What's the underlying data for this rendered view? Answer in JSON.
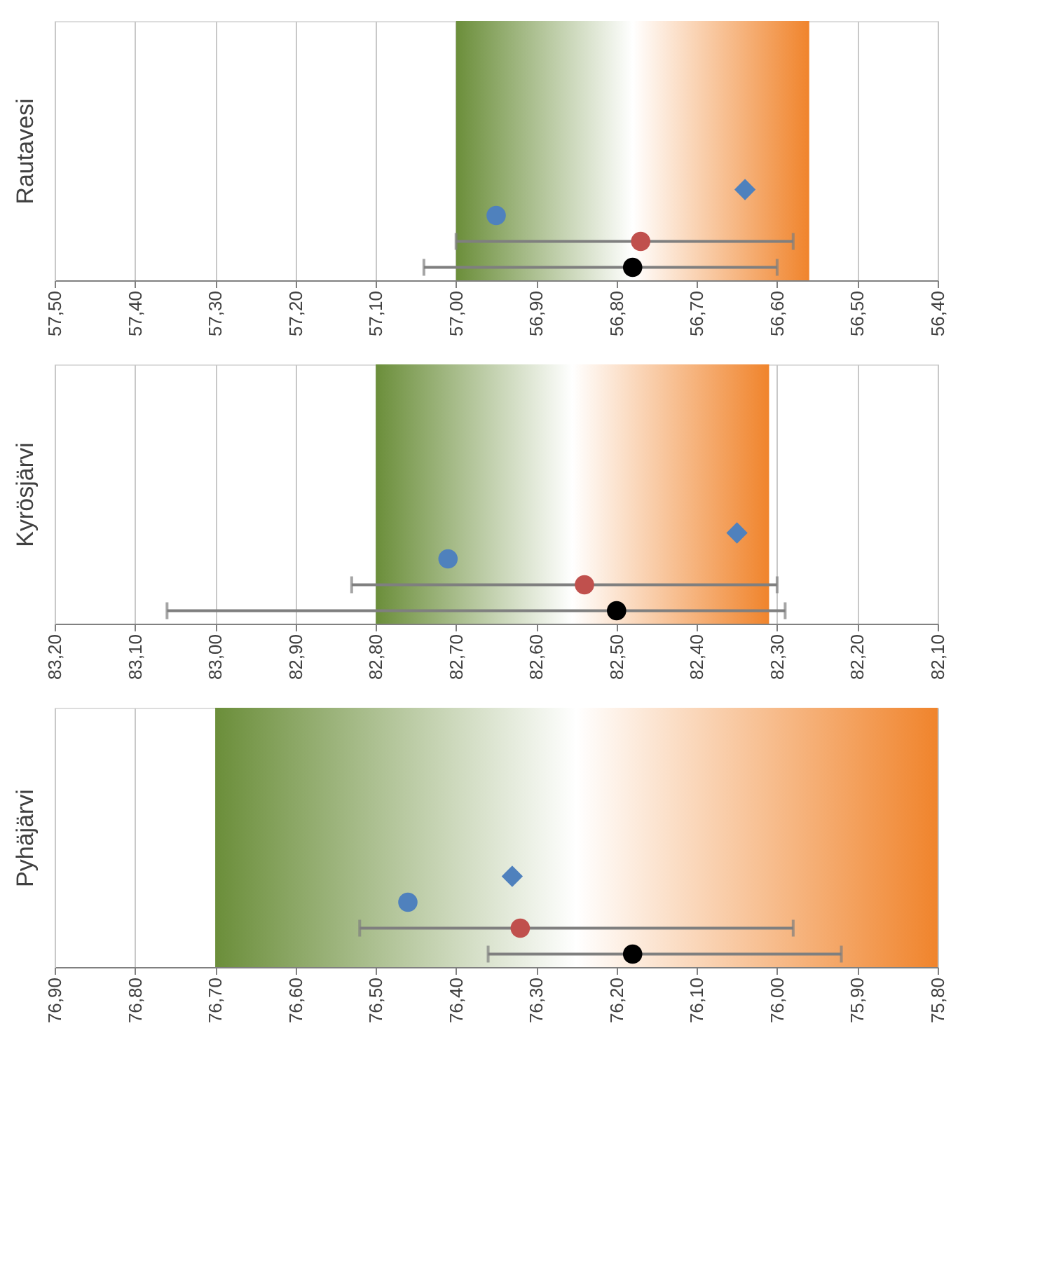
{
  "chart_data": [
    {
      "type": "scatter",
      "orientation": "horizontal",
      "ylabel": "Rautavesi",
      "categories": [
        null,
        null,
        null,
        null,
        null,
        null,
        null,
        null,
        null,
        null
      ],
      "xlim": [
        57.5,
        56.4
      ],
      "xticks": [
        {
          "value": 57.5,
          "label": "57,50"
        },
        {
          "value": 57.4,
          "label": "57,40"
        },
        {
          "value": 57.3,
          "label": "57,30"
        },
        {
          "value": 57.2,
          "label": "57,20"
        },
        {
          "value": 57.1,
          "label": "57,10"
        },
        {
          "value": 57.0,
          "label": "57,00"
        },
        {
          "value": 56.9,
          "label": "56,90"
        },
        {
          "value": 56.8,
          "label": "56,80"
        },
        {
          "value": 56.7,
          "label": "56,70"
        },
        {
          "value": 56.6,
          "label": "56,60"
        },
        {
          "value": 56.5,
          "label": "56,50"
        },
        {
          "value": 56.4,
          "label": "56,40"
        }
      ],
      "grid": "x",
      "tick_labels": "x",
      "bands": [
        {
          "axis": "x",
          "from": 57.0,
          "to": 56.56,
          "color": "#6b8e3a"
        }
      ],
      "series": [
        {
          "color": "#4f81bd",
          "marker": "diamond",
          "values": [
            null,
            null,
            null,
            null,
            null,
            null,
            56.64,
            null,
            null,
            null
          ]
        },
        {
          "color": "#4f81bd",
          "marker": "circle",
          "values": [
            null,
            null,
            null,
            null,
            null,
            null,
            null,
            56.95,
            null,
            null
          ]
        },
        {
          "color": "#c0504d",
          "marker": "circle",
          "values": [
            null,
            null,
            null,
            null,
            null,
            null,
            null,
            null,
            56.77,
            null
          ],
          "errors": [
            null,
            null,
            null,
            null,
            null,
            null,
            null,
            null,
            [
              56.58,
              57.0
            ],
            null
          ]
        },
        {
          "color": "#000000",
          "marker": "circle",
          "values": [
            null,
            null,
            null,
            null,
            null,
            null,
            null,
            null,
            null,
            56.78
          ],
          "errors": [
            null,
            null,
            null,
            null,
            null,
            null,
            null,
            null,
            null,
            [
              56.6,
              57.04
            ]
          ]
        }
      ]
    },
    {
      "type": "scatter",
      "orientation": "horizontal",
      "ylabel": "Kyrösjärvi",
      "categories": [
        null,
        null,
        null,
        null,
        null,
        null,
        null,
        null,
        null,
        null
      ],
      "xlim": [
        83.2,
        82.1
      ],
      "xticks": [
        {
          "value": 83.2,
          "label": "83,20"
        },
        {
          "value": 83.1,
          "label": "83,10"
        },
        {
          "value": 83.0,
          "label": "83,00"
        },
        {
          "value": 82.9,
          "label": "82,90"
        },
        {
          "value": 82.8,
          "label": "82,80"
        },
        {
          "value": 82.7,
          "label": "82,70"
        },
        {
          "value": 82.6,
          "label": "82,60"
        },
        {
          "value": 82.5,
          "label": "82,50"
        },
        {
          "value": 82.4,
          "label": "82,40"
        },
        {
          "value": 82.3,
          "label": "82,30"
        },
        {
          "value": 82.2,
          "label": "82,20"
        },
        {
          "value": 82.1,
          "label": "82,10"
        }
      ],
      "grid": "x",
      "tick_labels": "x",
      "bands": [
        {
          "axis": "x",
          "from": 82.8,
          "to": 82.31,
          "color": "#6b8e3a"
        }
      ],
      "series": [
        {
          "color": "#4f81bd",
          "marker": "diamond",
          "values": [
            null,
            null,
            null,
            null,
            null,
            null,
            82.35,
            null,
            null,
            null
          ]
        },
        {
          "color": "#4f81bd",
          "marker": "circle",
          "values": [
            null,
            null,
            null,
            null,
            null,
            null,
            null,
            82.71,
            null,
            null
          ]
        },
        {
          "color": "#c0504d",
          "marker": "circle",
          "values": [
            null,
            null,
            null,
            null,
            null,
            null,
            null,
            null,
            82.54,
            null
          ],
          "errors": [
            null,
            null,
            null,
            null,
            null,
            null,
            null,
            null,
            [
              82.3,
              82.83
            ],
            null
          ]
        },
        {
          "color": "#000000",
          "marker": "circle",
          "values": [
            null,
            null,
            null,
            null,
            null,
            null,
            null,
            null,
            null,
            82.5
          ],
          "errors": [
            null,
            null,
            null,
            null,
            null,
            null,
            null,
            null,
            null,
            [
              82.29,
              83.06
            ]
          ]
        }
      ]
    },
    {
      "type": "scatter",
      "orientation": "horizontal",
      "ylabel": "Pyhäjärvi",
      "categories": [
        null,
        null,
        null,
        null,
        null,
        null,
        null,
        null,
        null,
        null
      ],
      "xlim": [
        76.9,
        75.8
      ],
      "xticks": [
        {
          "value": 76.9,
          "label": "76,90"
        },
        {
          "value": 76.8,
          "label": "76,80"
        },
        {
          "value": 76.7,
          "label": "76,70"
        },
        {
          "value": 76.6,
          "label": "76,60"
        },
        {
          "value": 76.5,
          "label": "76,50"
        },
        {
          "value": 76.4,
          "label": "76,40"
        },
        {
          "value": 76.3,
          "label": "76,30"
        },
        {
          "value": 76.2,
          "label": "76,20"
        },
        {
          "value": 76.1,
          "label": "76,10"
        },
        {
          "value": 76.0,
          "label": "76,00"
        },
        {
          "value": 75.9,
          "label": "75,90"
        },
        {
          "value": 75.8,
          "label": "75,80"
        }
      ],
      "grid": "x",
      "tick_labels": "x",
      "bands": [
        {
          "axis": "x",
          "from": 76.7,
          "to": 75.8,
          "color": "#6b8e3a"
        }
      ],
      "series": [
        {
          "color": "#4f81bd",
          "marker": "diamond",
          "values": [
            null,
            null,
            null,
            null,
            null,
            null,
            76.33,
            null,
            null,
            null
          ]
        },
        {
          "color": "#4f81bd",
          "marker": "circle",
          "values": [
            null,
            null,
            null,
            null,
            null,
            null,
            null,
            76.46,
            null,
            null
          ]
        },
        {
          "color": "#c0504d",
          "marker": "circle",
          "values": [
            null,
            null,
            null,
            null,
            null,
            null,
            null,
            null,
            76.32,
            null
          ],
          "errors": [
            null,
            null,
            null,
            null,
            null,
            null,
            null,
            null,
            [
              75.98,
              76.52
            ],
            null
          ]
        },
        {
          "color": "#000000",
          "marker": "circle",
          "values": [
            null,
            null,
            null,
            null,
            null,
            null,
            null,
            null,
            null,
            76.18
          ],
          "errors": [
            null,
            null,
            null,
            null,
            null,
            null,
            null,
            null,
            null,
            [
              75.92,
              76.36
            ]
          ]
        }
      ]
    }
  ]
}
